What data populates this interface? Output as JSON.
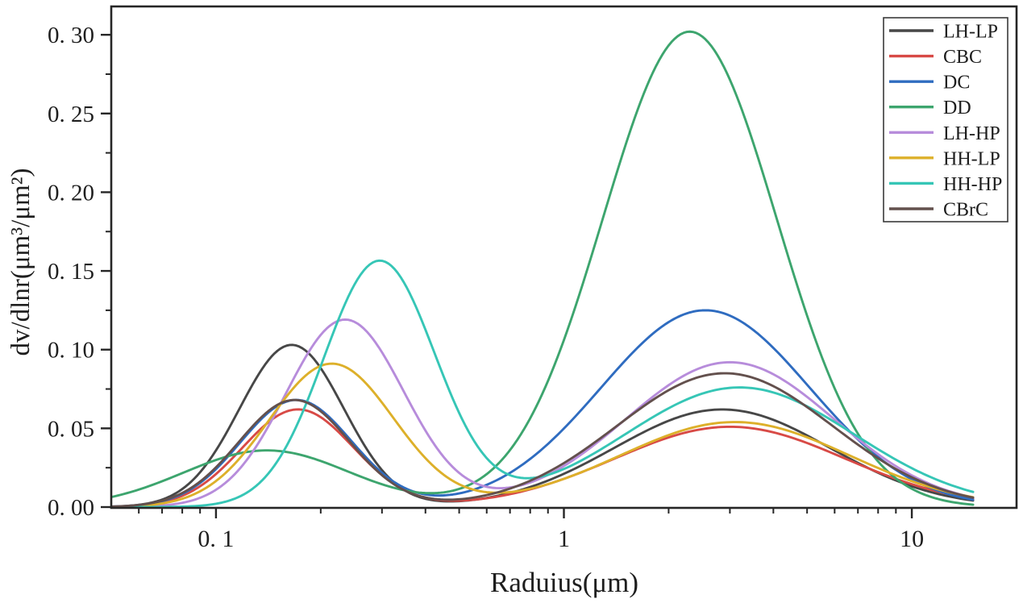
{
  "chart_data": {
    "type": "line",
    "title": "",
    "xlabel": "Raduius(μm)",
    "ylabel": "dv/dlnr(μm³/μm²)",
    "x_scale": "log",
    "y_scale": "linear",
    "xlim": [
      0.05,
      20
    ],
    "ylim": [
      0,
      0.318
    ],
    "x_data_range": [
      0.05,
      15
    ],
    "grid": false,
    "x_axis": {
      "major_ticks": [
        {
          "value": 0.1,
          "label": "0. 1"
        },
        {
          "value": 1,
          "label": "1"
        },
        {
          "value": 10,
          "label": "10"
        }
      ],
      "minor_ticks": [
        0.06,
        0.07,
        0.08,
        0.09,
        0.2,
        0.3,
        0.4,
        0.5,
        0.6,
        0.7,
        0.8,
        0.9,
        2,
        3,
        4,
        5,
        6,
        7,
        8,
        9
      ]
    },
    "y_axis": {
      "major_ticks": [
        {
          "value": 0.0,
          "label": "0. 00"
        },
        {
          "value": 0.05,
          "label": "0. 05"
        },
        {
          "value": 0.1,
          "label": "0. 10"
        },
        {
          "value": 0.15,
          "label": "0. 15"
        },
        {
          "value": 0.2,
          "label": "0. 20"
        },
        {
          "value": 0.25,
          "label": "0. 25"
        },
        {
          "value": 0.3,
          "label": "0. 30"
        }
      ],
      "minor_ticks": [
        0.025,
        0.075,
        0.125,
        0.175,
        0.225,
        0.275
      ]
    },
    "legend": {
      "position": "upper-right",
      "entries": [
        "LH-LP",
        "CBC",
        "DC",
        "DD",
        "LH-HP",
        "HH-LP",
        "HH-HP",
        "CBrC"
      ]
    },
    "series": [
      {
        "name": "LH-LP",
        "color": "#474747",
        "modes": [
          {
            "peak_r_um": 0.165,
            "peak_dvdlnr": 0.103,
            "width_log10": 0.15
          },
          {
            "peak_r_um": 2.85,
            "peak_dvdlnr": 0.062,
            "width_log10": 0.31
          }
        ]
      },
      {
        "name": "CBC",
        "color": "#d84a46",
        "modes": [
          {
            "peak_r_um": 0.172,
            "peak_dvdlnr": 0.062,
            "width_log10": 0.16
          },
          {
            "peak_r_um": 3.0,
            "peak_dvdlnr": 0.051,
            "width_log10": 0.33
          }
        ]
      },
      {
        "name": "DC",
        "color": "#2f6cc0",
        "modes": [
          {
            "peak_r_um": 0.17,
            "peak_dvdlnr": 0.068,
            "width_log10": 0.16
          },
          {
            "peak_r_um": 2.55,
            "peak_dvdlnr": 0.125,
            "width_log10": 0.3
          }
        ]
      },
      {
        "name": "DD",
        "color": "#3da56e",
        "modes": [
          {
            "peak_r_um": 0.14,
            "peak_dvdlnr": 0.036,
            "width_log10": 0.24
          },
          {
            "peak_r_um": 2.3,
            "peak_dvdlnr": 0.302,
            "width_log10": 0.25
          }
        ]
      },
      {
        "name": "LH-HP",
        "color": "#b78cdb",
        "modes": [
          {
            "peak_r_um": 0.235,
            "peak_dvdlnr": 0.119,
            "width_log10": 0.17
          },
          {
            "peak_r_um": 3.0,
            "peak_dvdlnr": 0.092,
            "width_log10": 0.3
          }
        ]
      },
      {
        "name": "HH-LP",
        "color": "#ddb02a",
        "modes": [
          {
            "peak_r_um": 0.215,
            "peak_dvdlnr": 0.091,
            "width_log10": 0.18
          },
          {
            "peak_r_um": 3.1,
            "peak_dvdlnr": 0.054,
            "width_log10": 0.33
          }
        ]
      },
      {
        "name": "HH-HP",
        "color": "#36c6b6",
        "modes": [
          {
            "peak_r_um": 0.295,
            "peak_dvdlnr": 0.156,
            "width_log10": 0.16
          },
          {
            "peak_r_um": 3.2,
            "peak_dvdlnr": 0.076,
            "width_log10": 0.33
          }
        ]
      },
      {
        "name": "CBrC",
        "color": "#63504d",
        "modes": [
          {
            "peak_r_um": 0.168,
            "peak_dvdlnr": 0.068,
            "width_log10": 0.16
          },
          {
            "peak_r_um": 2.9,
            "peak_dvdlnr": 0.085,
            "width_log10": 0.31
          }
        ]
      }
    ],
    "style": {
      "spine_color": "#262626",
      "tick_color": "#262626",
      "legend_border_color": "#3a3a3a",
      "background": "#ffffff"
    }
  }
}
